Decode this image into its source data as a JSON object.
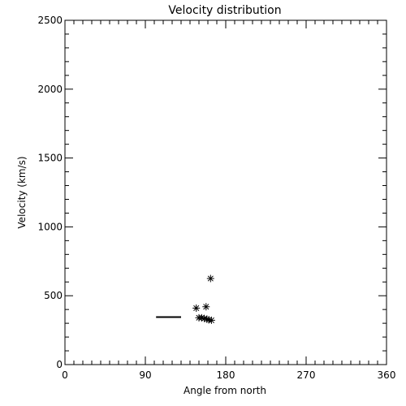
{
  "chart_data": {
    "type": "scatter",
    "title": "Velocity distribution",
    "xlabel": "Angle from north",
    "ylabel": "Velocity (km/s)",
    "xlim": [
      0,
      360
    ],
    "ylim": [
      0,
      2500
    ],
    "x_ticks": [
      0,
      90,
      180,
      270,
      360
    ],
    "x_tick_labels": [
      "0",
      "90",
      "180",
      "270",
      "360"
    ],
    "y_ticks": [
      0,
      500,
      1000,
      1500,
      2000,
      2500
    ],
    "y_tick_labels": [
      "0",
      "500",
      "1000",
      "1500",
      "2000",
      "2500"
    ],
    "x_minor_step": 10,
    "y_minor_step": 100,
    "grid": false,
    "marker": "asterisk",
    "points": [
      {
        "x": 163,
        "y": 625
      },
      {
        "x": 147,
        "y": 410
      },
      {
        "x": 158,
        "y": 420
      },
      {
        "x": 150,
        "y": 340
      },
      {
        "x": 153,
        "y": 340
      },
      {
        "x": 156,
        "y": 335
      },
      {
        "x": 159,
        "y": 330
      },
      {
        "x": 161,
        "y": 325
      },
      {
        "x": 164,
        "y": 322
      }
    ],
    "segments": [
      {
        "x": [
          102,
          130
        ],
        "y": [
          345,
          345
        ]
      }
    ]
  }
}
